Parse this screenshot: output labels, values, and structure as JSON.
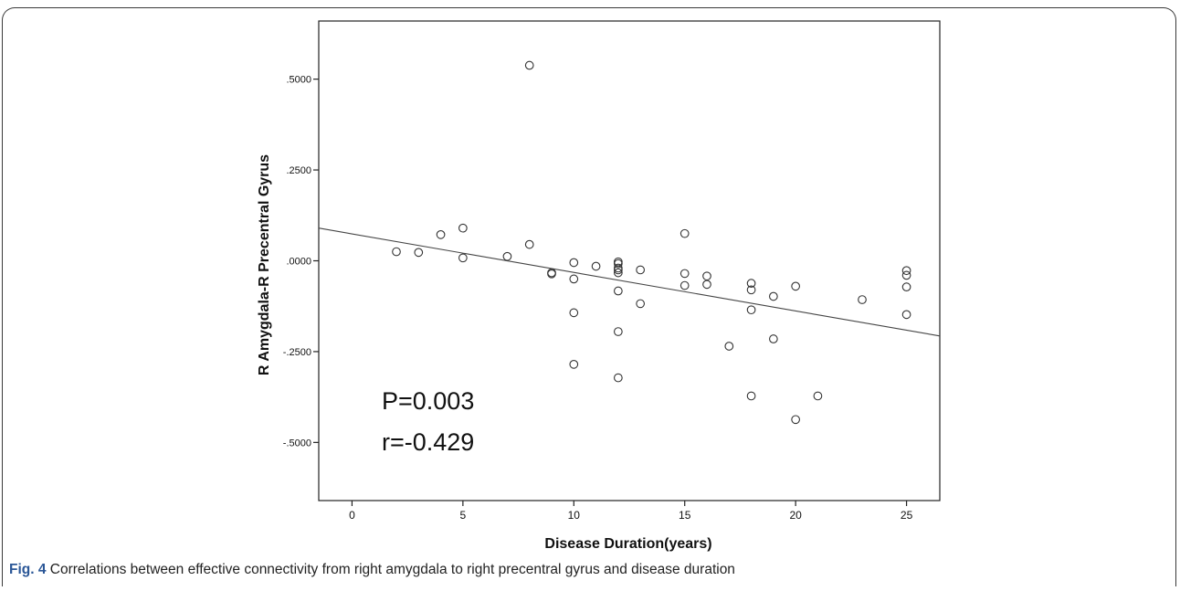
{
  "chart_data": {
    "type": "scatter",
    "xlabel": "Disease Duration(years)",
    "ylabel": "R Amygdala-R Precentral Gyrus",
    "xlim": [
      -1.5,
      26.5
    ],
    "ylim": [
      -0.66,
      0.66
    ],
    "x_ticks": [
      0,
      5,
      10,
      15,
      20,
      25
    ],
    "x_tick_labels": [
      "0",
      "5",
      "10",
      "15",
      "20",
      "25"
    ],
    "y_ticks": [
      -0.5,
      -0.25,
      0,
      0.25,
      0.5
    ],
    "y_tick_labels": [
      "-.5000",
      "-.2500",
      ".0000",
      ".2500",
      ".5000"
    ],
    "grid": false,
    "points": [
      {
        "x": 2,
        "y": 0.025
      },
      {
        "x": 3,
        "y": 0.023
      },
      {
        "x": 4,
        "y": 0.072
      },
      {
        "x": 5,
        "y": 0.09
      },
      {
        "x": 5,
        "y": 0.008
      },
      {
        "x": 7,
        "y": 0.012
      },
      {
        "x": 8,
        "y": 0.538
      },
      {
        "x": 8,
        "y": 0.045
      },
      {
        "x": 9,
        "y": -0.033
      },
      {
        "x": 9,
        "y": -0.036
      },
      {
        "x": 10,
        "y": -0.005
      },
      {
        "x": 10,
        "y": -0.05
      },
      {
        "x": 10,
        "y": -0.143
      },
      {
        "x": 10,
        "y": -0.285
      },
      {
        "x": 11,
        "y": -0.015
      },
      {
        "x": 12,
        "y": -0.003
      },
      {
        "x": 12,
        "y": -0.008
      },
      {
        "x": 12,
        "y": -0.02
      },
      {
        "x": 12,
        "y": -0.025
      },
      {
        "x": 12,
        "y": -0.033
      },
      {
        "x": 12,
        "y": -0.083
      },
      {
        "x": 12,
        "y": -0.195
      },
      {
        "x": 12,
        "y": -0.322
      },
      {
        "x": 13,
        "y": -0.025
      },
      {
        "x": 13,
        "y": -0.118
      },
      {
        "x": 15,
        "y": 0.075
      },
      {
        "x": 15,
        "y": -0.035
      },
      {
        "x": 15,
        "y": -0.068
      },
      {
        "x": 16,
        "y": -0.042
      },
      {
        "x": 16,
        "y": -0.065
      },
      {
        "x": 17,
        "y": -0.235
      },
      {
        "x": 18,
        "y": -0.062
      },
      {
        "x": 18,
        "y": -0.08
      },
      {
        "x": 18,
        "y": -0.135
      },
      {
        "x": 18,
        "y": -0.372
      },
      {
        "x": 19,
        "y": -0.098
      },
      {
        "x": 19,
        "y": -0.215
      },
      {
        "x": 20,
        "y": -0.07
      },
      {
        "x": 20,
        "y": -0.437
      },
      {
        "x": 21,
        "y": -0.372
      },
      {
        "x": 23,
        "y": -0.107
      },
      {
        "x": 25,
        "y": -0.027
      },
      {
        "x": 25,
        "y": -0.04
      },
      {
        "x": 25,
        "y": -0.072
      },
      {
        "x": 25,
        "y": -0.148
      }
    ],
    "fit_line": {
      "x1": -1.5,
      "y1": 0.09,
      "x2": 26.5,
      "y2": -0.207
    },
    "annotations": [
      "P=0.003",
      "r=-0.429"
    ]
  },
  "caption": {
    "label": "Fig. 4",
    "text": " Correlations between effective connectivity from right amygdala to right precentral gyrus and disease duration"
  }
}
